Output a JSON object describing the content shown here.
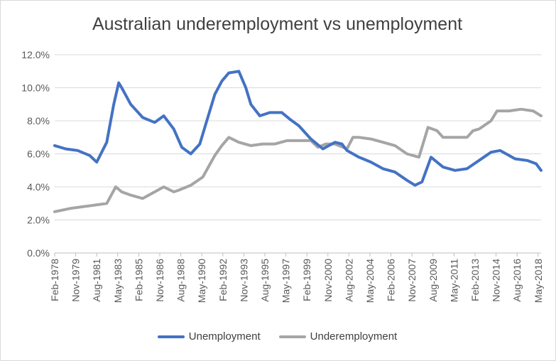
{
  "colors": {
    "unemployment": "#4472C4",
    "underemployment": "#A5A5A5",
    "grid": "#d9d9d9",
    "axis": "#bfbfbf"
  },
  "chart_data": {
    "type": "line",
    "title": "Australian underemployment  vs unemployment",
    "xlabel": "",
    "ylabel": "",
    "ylim": [
      0,
      12
    ],
    "y_ticks": [
      "0.0%",
      "2.0%",
      "4.0%",
      "6.0%",
      "8.0%",
      "10.0%",
      "12.0%"
    ],
    "x_range": [
      "1978-02",
      "2018-08"
    ],
    "x_ticks": [
      "Feb-1978",
      "Nov-1979",
      "Aug-1981",
      "May-1983",
      "Feb-1985",
      "Nov-1986",
      "Aug-1988",
      "May-1990",
      "Feb-1992",
      "Nov-1993",
      "Aug-1995",
      "May-1997",
      "Feb-1999",
      "Nov-2000",
      "Aug-2002",
      "May-2004",
      "Feb-2006",
      "Nov-2007",
      "Aug-2009",
      "May-2011",
      "Feb-2013",
      "Nov-2014",
      "Aug-2016",
      "May-2018"
    ],
    "grid": true,
    "legend_position": "bottom",
    "series": [
      {
        "name": "Unemployment",
        "x": [
          "1978-02",
          "1979-01",
          "1980-01",
          "1981-01",
          "1981-08",
          "1982-06",
          "1983-01",
          "1983-06",
          "1983-09",
          "1984-06",
          "1985-06",
          "1986-06",
          "1987-03",
          "1988-01",
          "1988-09",
          "1989-06",
          "1990-03",
          "1990-09",
          "1991-06",
          "1992-01",
          "1992-08",
          "1993-06",
          "1994-01",
          "1994-06",
          "1995-03",
          "1996-01",
          "1997-01",
          "1997-09",
          "1998-06",
          "1999-06",
          "2000-06",
          "2001-06",
          "2002-01",
          "2002-06",
          "2003-06",
          "2004-06",
          "2005-06",
          "2006-06",
          "2007-06",
          "2008-02",
          "2008-09",
          "2009-06",
          "2009-10",
          "2010-06",
          "2011-06",
          "2012-06",
          "2013-06",
          "2014-06",
          "2015-03",
          "2016-06",
          "2017-06",
          "2018-03",
          "2018-08"
        ],
        "values": [
          6.5,
          6.3,
          6.2,
          5.9,
          5.5,
          6.7,
          9.0,
          10.3,
          10.0,
          9.0,
          8.2,
          7.9,
          8.3,
          7.5,
          6.4,
          6.0,
          6.6,
          7.8,
          9.6,
          10.4,
          10.9,
          11.0,
          10.0,
          9.0,
          8.3,
          8.5,
          8.5,
          8.1,
          7.7,
          6.9,
          6.3,
          6.7,
          6.6,
          6.2,
          5.8,
          5.5,
          5.1,
          4.9,
          4.4,
          4.1,
          4.3,
          5.8,
          5.6,
          5.2,
          5.0,
          5.1,
          5.6,
          6.1,
          6.2,
          5.7,
          5.6,
          5.4,
          5.0
        ]
      },
      {
        "name": "Underemployment",
        "x": [
          "1978-02",
          "1979-06",
          "1980-06",
          "1981-06",
          "1982-06",
          "1983-03",
          "1983-09",
          "1984-06",
          "1985-06",
          "1986-06",
          "1987-03",
          "1988-01",
          "1988-06",
          "1989-06",
          "1990-06",
          "1991-06",
          "1992-01",
          "1992-08",
          "1993-06",
          "1994-06",
          "1995-06",
          "1996-06",
          "1997-06",
          "1998-06",
          "1999-06",
          "2000-01",
          "2000-09",
          "2001-06",
          "2002-06",
          "2002-12",
          "2003-06",
          "2004-06",
          "2005-06",
          "2006-06",
          "2007-06",
          "2008-06",
          "2008-12",
          "2009-03",
          "2009-12",
          "2010-06",
          "2011-06",
          "2012-06",
          "2012-12",
          "2013-06",
          "2014-06",
          "2014-12",
          "2015-12",
          "2016-12",
          "2017-12",
          "2018-08"
        ],
        "values": [
          2.5,
          2.7,
          2.8,
          2.9,
          3.0,
          4.0,
          3.7,
          3.5,
          3.3,
          3.7,
          4.0,
          3.7,
          3.8,
          4.1,
          4.6,
          5.9,
          6.5,
          7.0,
          6.7,
          6.5,
          6.6,
          6.6,
          6.8,
          6.8,
          6.8,
          6.4,
          6.6,
          6.6,
          6.3,
          7.0,
          7.0,
          6.9,
          6.7,
          6.5,
          6.0,
          5.8,
          7.0,
          7.6,
          7.4,
          7.0,
          7.0,
          7.0,
          7.4,
          7.5,
          8.0,
          8.6,
          8.6,
          8.7,
          8.6,
          8.3
        ]
      }
    ]
  }
}
